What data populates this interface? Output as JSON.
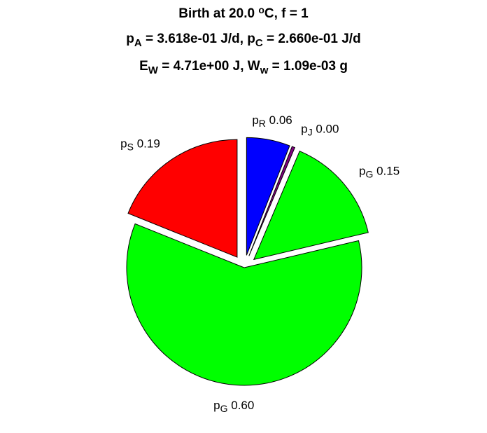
{
  "chart_data": {
    "type": "pie",
    "title": [
      [
        {
          "text": "Birth at 20.0 "
        },
        {
          "text": "o",
          "script": "sup"
        },
        {
          "text": "C, f = 1"
        }
      ],
      [
        {
          "text": "p"
        },
        {
          "text": "A",
          "script": "sub"
        },
        {
          "text": " = 3.618e-01 J/d, p"
        },
        {
          "text": "C",
          "script": "sub"
        },
        {
          "text": " = 2.660e-01 J/d"
        }
      ],
      [
        {
          "text": "E"
        },
        {
          "text": "W",
          "script": "sub"
        },
        {
          "text": " = 4.71e+00 J, W"
        },
        {
          "text": "w",
          "script": "sub"
        },
        {
          "text": " = 1.09e-03 g"
        }
      ]
    ],
    "labels": [
      {
        "base": "p",
        "sub": "R"
      },
      {
        "base": "p",
        "sub": "J"
      },
      {
        "base": "p",
        "sub": "G"
      },
      {
        "base": "p",
        "sub": "G"
      },
      {
        "base": "p",
        "sub": "S"
      }
    ],
    "values": [
      0.06,
      0.004,
      0.15,
      0.6,
      0.19
    ],
    "value_labels": [
      "0.06",
      "0.00",
      "0.15",
      "0.60",
      "0.19"
    ],
    "colors": [
      "#0000ff",
      "#800080",
      "#00ff00",
      "#00ff00",
      "#ff0000"
    ],
    "explode": [
      true,
      true,
      true,
      false,
      true
    ]
  }
}
